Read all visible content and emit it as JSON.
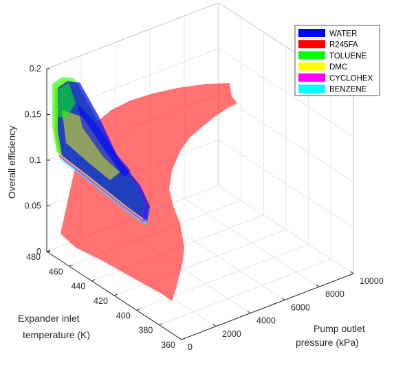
{
  "chart_data": {
    "type": "surface3d",
    "zlabel": "Overall efficiency",
    "ylabel_lines": [
      "Expander inlet",
      "temperature (K)"
    ],
    "xlabel_lines": [
      "Pump outlet",
      "pressure (kPa)"
    ],
    "xlim": [
      0,
      10000
    ],
    "ylim": [
      360,
      480
    ],
    "zlim": [
      0,
      0.2
    ],
    "xticks": [
      "0",
      "2000",
      "4000",
      "6000",
      "8000",
      "10000"
    ],
    "yticks": [
      "360",
      "380",
      "400",
      "420",
      "440",
      "460",
      "480"
    ],
    "zticks": [
      "0",
      "0.05",
      "0.1",
      "0.15",
      "0.2"
    ],
    "grid": true,
    "legend_position": "top-right",
    "series": [
      {
        "name": "WATER",
        "color": "#0000ff"
      },
      {
        "name": "R245FA",
        "color": "#ff0000"
      },
      {
        "name": "TOLUENE",
        "color": "#00ff00"
      },
      {
        "name": "DMC",
        "color": "#ffff00"
      },
      {
        "name": "CYCLOHEX",
        "color": "#ff00ff"
      },
      {
        "name": "BENZENE",
        "color": "#00ffff"
      }
    ]
  }
}
